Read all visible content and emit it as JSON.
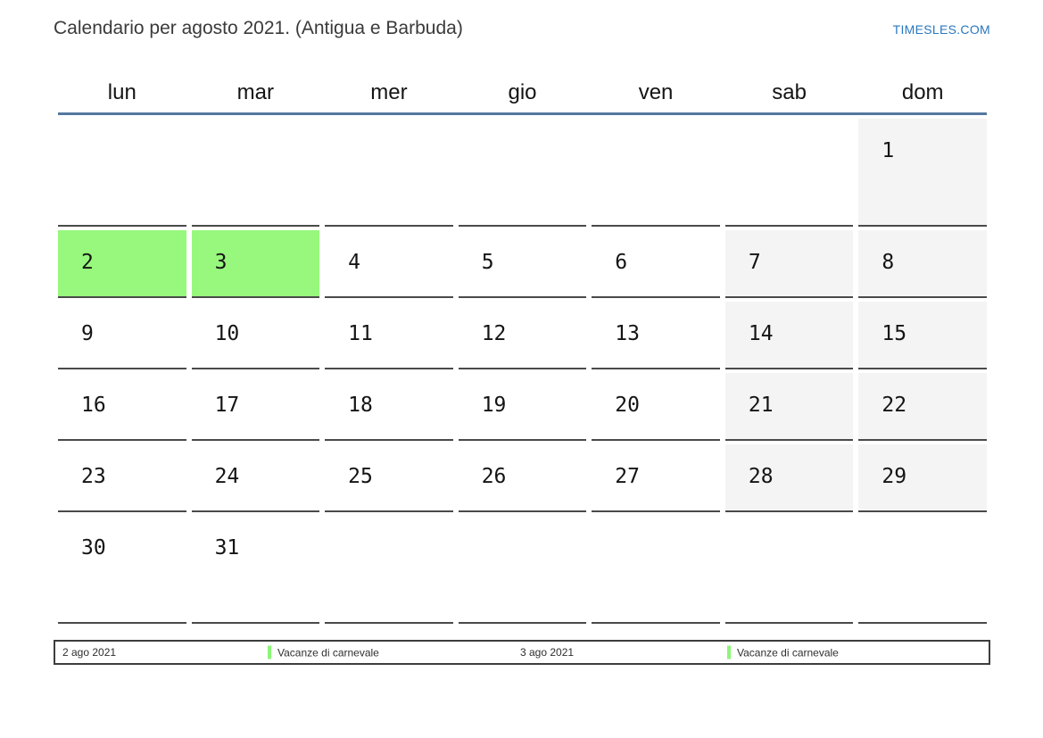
{
  "header": {
    "title": "Calendario per agosto 2021. (Antigua e Barbuda)",
    "site_link": "TIMESLES.COM"
  },
  "weekdays": [
    "lun",
    "mar",
    "mer",
    "gio",
    "ven",
    "sab",
    "dom"
  ],
  "grid": {
    "rows": [
      [
        "",
        "",
        "",
        "",
        "",
        "",
        "1"
      ],
      [
        "2",
        "3",
        "4",
        "5",
        "6",
        "7",
        "8"
      ],
      [
        "9",
        "10",
        "11",
        "12",
        "13",
        "14",
        "15"
      ],
      [
        "16",
        "17",
        "18",
        "19",
        "20",
        "21",
        "22"
      ],
      [
        "23",
        "24",
        "25",
        "26",
        "27",
        "28",
        "29"
      ],
      [
        "30",
        "31",
        "",
        "",
        "",
        "",
        ""
      ]
    ],
    "holiday_cells": [
      "2",
      "3"
    ],
    "weekend_gray_cells": [
      "1",
      "7",
      "8",
      "14",
      "15",
      "21",
      "22",
      "28",
      "29"
    ]
  },
  "legend": {
    "entries": [
      {
        "date": "2 ago 2021",
        "label": "Vacanze di carnevale"
      },
      {
        "date": "3 ago 2021",
        "label": "Vacanze di carnevale"
      }
    ]
  },
  "colors": {
    "holiday_green": "#98f87d",
    "weekend_gray": "#f4f4f4",
    "header_rule_blue": "#54789e",
    "cell_line": "#4a4a4a",
    "link_blue": "#2877be"
  }
}
